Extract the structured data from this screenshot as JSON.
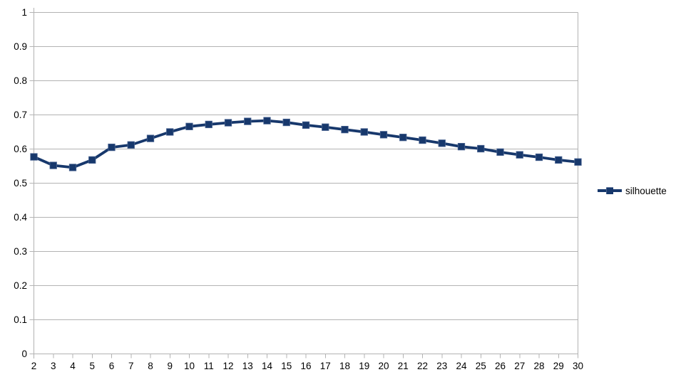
{
  "chart_data": {
    "type": "line",
    "title": "",
    "xlabel": "",
    "ylabel": "",
    "x": [
      2,
      3,
      4,
      5,
      6,
      7,
      8,
      9,
      10,
      11,
      12,
      13,
      14,
      15,
      16,
      17,
      18,
      19,
      20,
      21,
      22,
      23,
      24,
      25,
      26,
      27,
      28,
      29,
      30
    ],
    "series": [
      {
        "name": "silhouette",
        "values": [
          0.577,
          0.552,
          0.546,
          0.568,
          0.605,
          0.612,
          0.631,
          0.65,
          0.666,
          0.672,
          0.677,
          0.681,
          0.683,
          0.678,
          0.67,
          0.664,
          0.657,
          0.65,
          0.642,
          0.634,
          0.626,
          0.617,
          0.607,
          0.601,
          0.591,
          0.583,
          0.576,
          0.568,
          0.562
        ]
      }
    ],
    "ylim": [
      0,
      1
    ],
    "yticks": [
      0,
      0.1,
      0.2,
      0.3,
      0.4,
      0.5,
      0.6,
      0.7,
      0.8,
      0.9,
      1
    ],
    "ytick_labels": [
      "0",
      "0.1",
      "0.2",
      "0.3",
      "0.4",
      "0.5",
      "0.6",
      "0.7",
      "0.8",
      "0.9",
      "1"
    ],
    "xtick_labels": [
      "2",
      "3",
      "4",
      "5",
      "6",
      "7",
      "8",
      "9",
      "10",
      "11",
      "12",
      "13",
      "14",
      "15",
      "16",
      "17",
      "18",
      "19",
      "20",
      "21",
      "22",
      "23",
      "24",
      "25",
      "26",
      "27",
      "28",
      "29",
      "30"
    ],
    "grid": "horizontal-only",
    "legend_position": "right",
    "marker": "square",
    "colors": {
      "series": "#17386C",
      "marker_edge": "#4A6492",
      "grid": "#B3B3B3",
      "axis": "#B3B3B3",
      "text": "#000000",
      "background": "#FFFFFF"
    }
  }
}
